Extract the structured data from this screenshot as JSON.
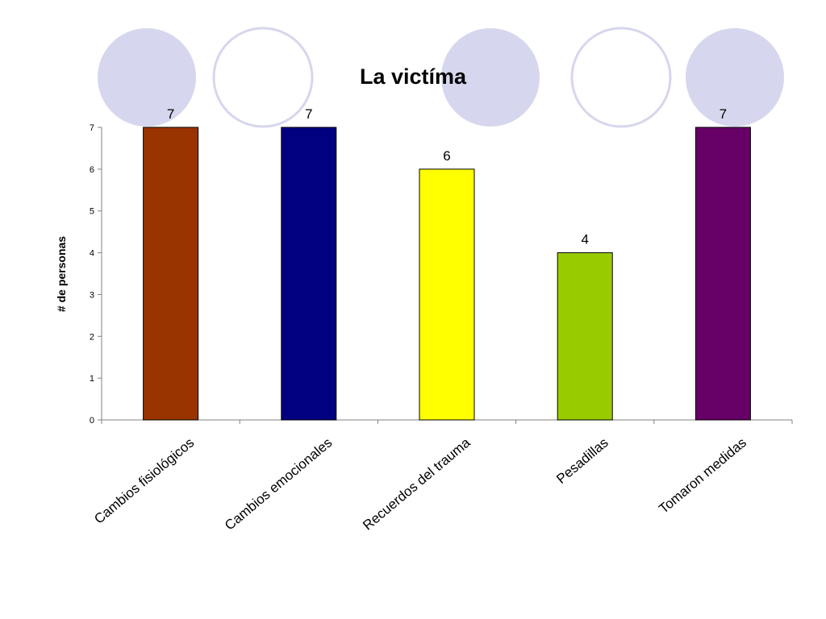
{
  "decor": {
    "circle_fill": "#d6d6ee",
    "circle_stroke": "#d6d6ee",
    "circles": [
      "filled",
      "outline",
      "filled",
      "outline",
      "filled"
    ]
  },
  "chart_data": {
    "type": "bar",
    "title": "La victíma",
    "xlabel": "",
    "ylabel": "# de personas",
    "ylim": [
      0,
      7
    ],
    "yticks": [
      "0",
      "1",
      "2",
      "3",
      "4",
      "5",
      "6",
      "7"
    ],
    "categories": [
      "Cambios fisiológicos",
      "Cambios emocionales",
      "Recuerdos del trauma",
      "Pesadillas",
      "Tomaron medidas"
    ],
    "values": [
      7,
      7,
      6,
      4,
      7
    ],
    "data_labels": [
      "7",
      "7",
      "6",
      "4",
      "7"
    ],
    "colors": [
      "#993300",
      "#000080",
      "#ffff00",
      "#99cc00",
      "#660066"
    ],
    "grid": false,
    "legend": "none"
  }
}
